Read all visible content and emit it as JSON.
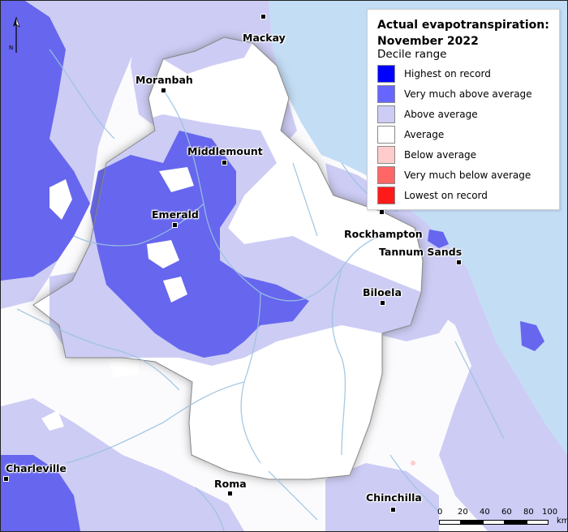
{
  "legend": {
    "title": "Actual evapotranspiration: November 2022",
    "subtitle": "Decile range",
    "items": [
      {
        "label": "Highest on record",
        "color": "#0000ff"
      },
      {
        "label": "Very much above average",
        "color": "#6666ff"
      },
      {
        "label": "Above average",
        "color": "#ccccf5"
      },
      {
        "label": "Average",
        "color": "#ffffff"
      },
      {
        "label": "Below average",
        "color": "#ffcccc"
      },
      {
        "label": "Very much below average",
        "color": "#ff6666"
      },
      {
        "label": "Lowest on record",
        "color": "#ff1a1a"
      }
    ]
  },
  "towns": {
    "mackay": "Mackay",
    "moranbah": "Moranbah",
    "middlemount": "Middlemount",
    "emerald": "Emerald",
    "rockhampton": "Rockhampton",
    "tannum_sands": "Tannum Sands",
    "biloela": "Biloela",
    "charleville": "Charleville",
    "roma": "Roma",
    "chinchilla": "Chinchilla"
  },
  "north_arrow": {
    "label": "N"
  },
  "scale_bar": {
    "ticks": [
      "0",
      "20",
      "40",
      "60",
      "80",
      "100"
    ],
    "unit": "km"
  },
  "colors": {
    "sea": "#c3ddf5",
    "land_average": "#ffffff",
    "above_average": "#ccccf5",
    "very_much_above_average": "#6666ee",
    "highest_on_record": "#0000ff",
    "below_average": "#ffcccc",
    "rivers": "#9cc3e0"
  }
}
